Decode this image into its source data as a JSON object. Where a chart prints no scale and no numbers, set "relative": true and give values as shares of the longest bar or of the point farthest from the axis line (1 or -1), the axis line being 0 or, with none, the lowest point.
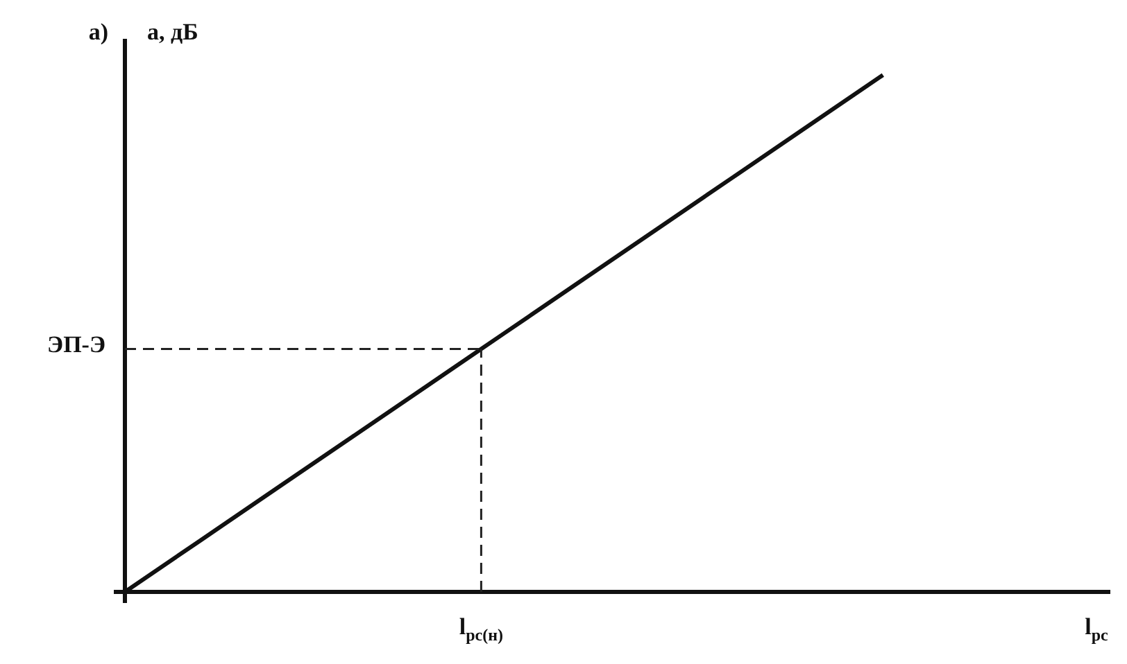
{
  "chart_data": {
    "type": "line",
    "relative": true,
    "ylabel": "a, дБ",
    "xlabel": "l$_{рс}$",
    "annotations": [
      "а)",
      {
        "text": "l$_{рс(н)}$",
        "y": 0.47
      }
    ],
    "categories": [
      null,
      null,
      null,
      null,
      null,
      null,
      null,
      null,
      null,
      null,
      null,
      null,
      null,
      null
    ],
    "series": [
      {
        "color": "#111111",
        "values": [
          0,
          0.1,
          0.2,
          0.3,
          0.4,
          0.5,
          0.6,
          0.7,
          0.8,
          0.9,
          1,
          null,
          null,
          null
        ]
      }
    ],
    "ref_lines": [
      {
        "axis": "y",
        "value": 0.47,
        "label": "ЭП-Э",
        "line_style": "dashed"
      }
    ],
    "marker": "none",
    "legend": false
  }
}
